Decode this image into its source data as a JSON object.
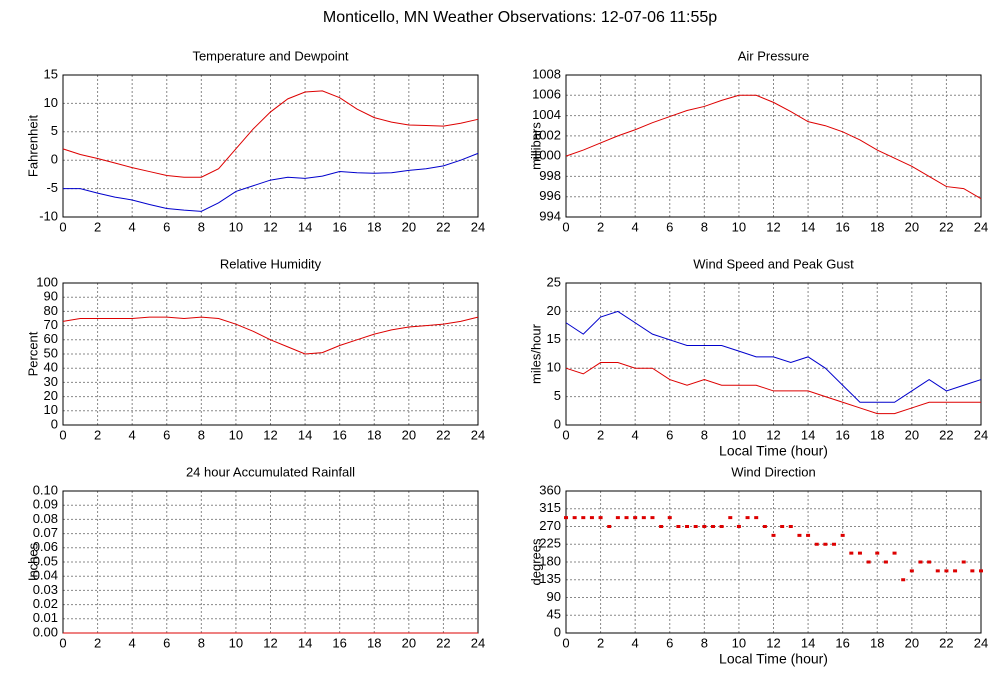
{
  "title": "Monticello, MN Weather Observations: 12-07-06 11:55p",
  "chart_data": [
    {
      "type": "line",
      "title": "Temperature and Dewpoint",
      "ylabel": "Fahrenheit",
      "xlim": [
        0,
        24
      ],
      "xticks": [
        0,
        2,
        4,
        6,
        8,
        10,
        12,
        14,
        16,
        18,
        20,
        22,
        24
      ],
      "ylim": [
        -10,
        15
      ],
      "yticks": [
        -10,
        -5,
        0,
        5,
        10,
        15
      ],
      "grid": true,
      "x": [
        0,
        1,
        2,
        3,
        4,
        5,
        6,
        7,
        8,
        9,
        10,
        11,
        12,
        13,
        14,
        15,
        16,
        17,
        18,
        19,
        20,
        21,
        22,
        23,
        24
      ],
      "series": [
        {
          "color": "#dd0000",
          "values": [
            2,
            1,
            0.3,
            -0.5,
            -1.3,
            -2,
            -2.7,
            -3,
            -3,
            -1.5,
            2,
            5.5,
            8.5,
            10.8,
            12,
            12.2,
            11,
            9,
            7.5,
            6.7,
            6.2,
            6.1,
            6,
            6.5,
            7.2
          ]
        },
        {
          "color": "#0000cc",
          "values": [
            -5,
            -5,
            -5.8,
            -6.5,
            -7,
            -7.8,
            -8.5,
            -8.8,
            -9,
            -7.5,
            -5.5,
            -4.5,
            -3.5,
            -3,
            -3.2,
            -2.8,
            -2,
            -2.2,
            -2.3,
            -2.2,
            -1.8,
            -1.5,
            -1,
            0,
            1.2
          ]
        }
      ]
    },
    {
      "type": "line",
      "title": "Air Pressure",
      "ylabel": "millibars",
      "xlim": [
        0,
        24
      ],
      "xticks": [
        0,
        2,
        4,
        6,
        8,
        10,
        12,
        14,
        16,
        18,
        20,
        22,
        24
      ],
      "ylim": [
        994,
        1008
      ],
      "yticks": [
        994,
        996,
        998,
        1000,
        1002,
        1004,
        1006,
        1008
      ],
      "grid": true,
      "x": [
        0,
        1,
        2,
        3,
        4,
        5,
        6,
        7,
        8,
        9,
        10,
        11,
        12,
        13,
        14,
        15,
        16,
        17,
        18,
        19,
        20,
        21,
        22,
        23,
        24
      ],
      "series": [
        {
          "color": "#dd0000",
          "values": [
            1000,
            1000.6,
            1001.3,
            1002,
            1002.6,
            1003.3,
            1003.9,
            1004.5,
            1004.9,
            1005.5,
            1006,
            1006,
            1005.3,
            1004.4,
            1003.4,
            1003,
            1002.4,
            1001.6,
            1000.6,
            999.8,
            999,
            998,
            997,
            996.8,
            995.8
          ]
        }
      ]
    },
    {
      "type": "line",
      "title": "Relative Humidity",
      "ylabel": "Percent",
      "xlim": [
        0,
        24
      ],
      "xticks": [
        0,
        2,
        4,
        6,
        8,
        10,
        12,
        14,
        16,
        18,
        20,
        22,
        24
      ],
      "ylim": [
        0,
        100
      ],
      "yticks": [
        0,
        10,
        20,
        30,
        40,
        50,
        60,
        70,
        80,
        90,
        100
      ],
      "grid": true,
      "x": [
        0,
        1,
        2,
        3,
        4,
        5,
        6,
        7,
        8,
        9,
        10,
        11,
        12,
        13,
        14,
        15,
        16,
        17,
        18,
        19,
        20,
        21,
        22,
        23,
        24
      ],
      "series": [
        {
          "color": "#dd0000",
          "values": [
            73,
            75,
            75,
            75,
            75,
            76,
            76,
            75,
            76,
            75,
            71,
            66,
            60,
            55,
            50,
            51,
            56,
            60,
            64,
            67,
            69,
            70,
            71,
            73,
            76
          ]
        }
      ]
    },
    {
      "type": "line",
      "title": "Wind Speed and Peak Gust",
      "ylabel": "miles/hour",
      "xlabel": "Local Time (hour)",
      "xlim": [
        0,
        24
      ],
      "xticks": [
        0,
        2,
        4,
        6,
        8,
        10,
        12,
        14,
        16,
        18,
        20,
        22,
        24
      ],
      "ylim": [
        0,
        25
      ],
      "yticks": [
        0,
        5,
        10,
        15,
        20,
        25
      ],
      "grid": true,
      "x": [
        0,
        1,
        2,
        3,
        4,
        5,
        6,
        7,
        8,
        9,
        10,
        11,
        12,
        13,
        14,
        15,
        16,
        17,
        18,
        19,
        20,
        21,
        22,
        23,
        24
      ],
      "series": [
        {
          "color": "#0000cc",
          "values": [
            18,
            16,
            19,
            20,
            18,
            16,
            15,
            14,
            14,
            14,
            13,
            12,
            12,
            11,
            12,
            10,
            7,
            4,
            4,
            4,
            6,
            8,
            6,
            7,
            8
          ]
        },
        {
          "color": "#dd0000",
          "values": [
            10,
            9,
            11,
            11,
            10,
            10,
            8,
            7,
            8,
            7,
            7,
            7,
            6,
            6,
            6,
            5,
            4,
            3,
            2,
            2,
            3,
            4,
            4,
            4,
            4
          ]
        }
      ]
    },
    {
      "type": "line",
      "title": "24 hour Accumulated Rainfall",
      "ylabel": "Inches",
      "xlim": [
        0,
        24
      ],
      "xticks": [
        0,
        2,
        4,
        6,
        8,
        10,
        12,
        14,
        16,
        18,
        20,
        22,
        24
      ],
      "ylim": [
        0,
        0.1
      ],
      "yticks": [
        {
          "value": 0,
          "label": "0.00"
        },
        {
          "value": 0.01,
          "label": "0.01"
        },
        {
          "value": 0.02,
          "label": "0.02"
        },
        {
          "value": 0.03,
          "label": "0.03"
        },
        {
          "value": 0.04,
          "label": "0.04"
        },
        {
          "value": 0.05,
          "label": "0.05"
        },
        {
          "value": 0.06,
          "label": "0.06"
        },
        {
          "value": 0.07,
          "label": "0.07"
        },
        {
          "value": 0.08,
          "label": "0.08"
        },
        {
          "value": 0.09,
          "label": "0.09"
        },
        {
          "value": 0.1,
          "label": "0.10"
        }
      ],
      "grid": true,
      "x": [
        0,
        24
      ],
      "series": [
        {
          "color": "#dd0000",
          "values": [
            0,
            0
          ]
        }
      ]
    },
    {
      "type": "scatter",
      "title": "Wind Direction",
      "ylabel": "degrees",
      "xlabel": "Local Time (hour)",
      "xlim": [
        0,
        24
      ],
      "xticks": [
        0,
        2,
        4,
        6,
        8,
        10,
        12,
        14,
        16,
        18,
        20,
        22,
        24
      ],
      "ylim": [
        0,
        360
      ],
      "yticks": [
        0,
        45,
        90,
        135,
        180,
        225,
        270,
        315,
        360
      ],
      "grid": true,
      "color": "#dd0000",
      "x": [
        0,
        0.5,
        1,
        1.5,
        2,
        2.5,
        3,
        3.5,
        4,
        4.5,
        5,
        5.5,
        6,
        6.5,
        7,
        7.5,
        8,
        8.5,
        9,
        9.5,
        10,
        10.5,
        11,
        11.5,
        12,
        12.5,
        13,
        13.5,
        14,
        14.5,
        15,
        15.5,
        16,
        16.5,
        17,
        17.5,
        18,
        18.5,
        19,
        19.5,
        20,
        20.5,
        21,
        21.5,
        22,
        22.5,
        23,
        23.5,
        24
      ],
      "values": [
        292.5,
        292.5,
        292.5,
        292.5,
        292.5,
        270,
        292.5,
        292.5,
        292.5,
        292.5,
        292.5,
        270,
        292.5,
        270,
        270,
        270,
        270,
        270,
        270,
        292.5,
        270,
        292.5,
        292.5,
        270,
        247.5,
        270,
        270,
        247.5,
        247.5,
        225,
        225,
        225,
        247.5,
        202.5,
        202.5,
        180,
        202.5,
        180,
        202.5,
        135,
        157.5,
        180,
        180,
        157.5,
        157.5,
        157.5,
        180,
        157.5,
        157.5
      ]
    }
  ]
}
